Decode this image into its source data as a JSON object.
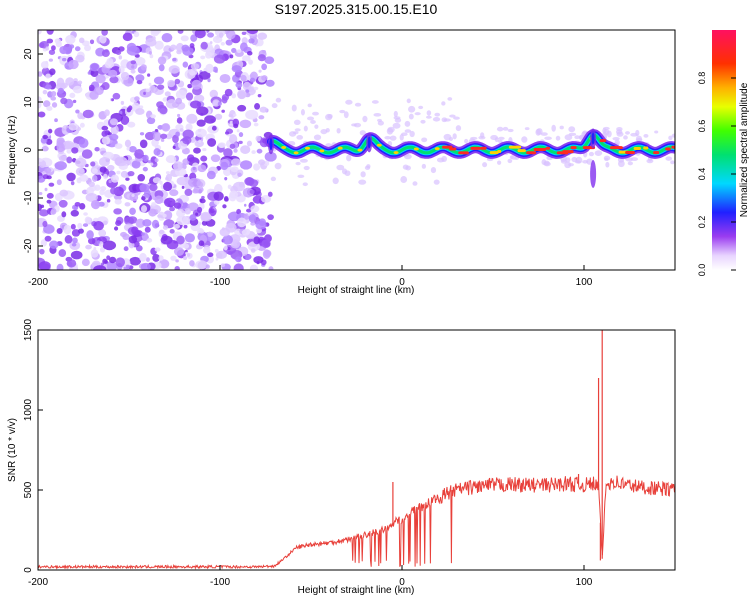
{
  "title": "S197.2025.315.00.15.E10",
  "chart_data": [
    {
      "type": "heatmap",
      "title": "S197.2025.315.00.15.E10",
      "xlabel": "Height of straight line (km)",
      "ylabel": "Frequency (Hz)",
      "xlim": [
        -200,
        150
      ],
      "ylim": [
        -25,
        25
      ],
      "xticks": [
        -200,
        -100,
        0,
        100
      ],
      "xtick_labels": [
        "-200",
        "-100",
        "0",
        "100"
      ],
      "yticks": [
        20,
        10,
        0,
        -10,
        -20
      ],
      "ytick_labels": [
        "20",
        "10",
        "0",
        "-10",
        "-20"
      ],
      "noise_region_km": [
        -200,
        -72
      ],
      "signal_start_km": -72,
      "band_centre_hz": 0,
      "band_features": [
        {
          "x": -72,
          "y": 3
        },
        {
          "x": -18,
          "y": 4
        },
        {
          "x": 105,
          "y": 6
        }
      ],
      "colorbar": {
        "label": "Normalized spectral amplitude",
        "range": [
          0,
          1
        ],
        "ticks": [
          0.0,
          0.2,
          0.4,
          0.6,
          0.8
        ],
        "tick_labels": [
          "0.0",
          "0.2",
          "0.4",
          "0.6",
          "0.8"
        ]
      },
      "grid": false
    },
    {
      "type": "line",
      "xlabel": "Height of straight line (km)",
      "ylabel": "SNR (10 * v/v)",
      "xlim": [
        -200,
        150
      ],
      "ylim": [
        0,
        1500
      ],
      "xticks": [
        -200,
        -100,
        0,
        100
      ],
      "xtick_labels": [
        "-200",
        "-100",
        "0",
        "100"
      ],
      "yticks": [
        0,
        500,
        1000,
        1500
      ],
      "ytick_labels": [
        "0",
        "500",
        "1000",
        "1500"
      ],
      "color": "#e8403a",
      "series": [
        {
          "name": "SNR",
          "x": [
            -200,
            -180,
            -150,
            -120,
            -100,
            -80,
            -70,
            -65,
            -58,
            -50,
            -40,
            -30,
            -20,
            -10,
            -5,
            0,
            5,
            10,
            15,
            20,
            25,
            30,
            40,
            50,
            60,
            70,
            80,
            90,
            100,
            105,
            108,
            110,
            112,
            115,
            120,
            130,
            140,
            150
          ],
          "values": [
            20,
            20,
            20,
            20,
            20,
            20,
            25,
            70,
            140,
            160,
            170,
            190,
            220,
            250,
            290,
            320,
            360,
            390,
            420,
            450,
            480,
            500,
            520,
            530,
            535,
            530,
            530,
            540,
            530,
            540,
            520,
            70,
            520,
            560,
            540,
            520,
            510,
            500
          ]
        }
      ],
      "spikes": [
        {
          "x": -5,
          "y": 550
        },
        {
          "x": 97,
          "y": 600
        },
        {
          "x": 108,
          "y": 1200
        },
        {
          "x": 110,
          "y": 1500
        },
        {
          "x": 109,
          "y": 60
        }
      ],
      "grid": false
    }
  ]
}
